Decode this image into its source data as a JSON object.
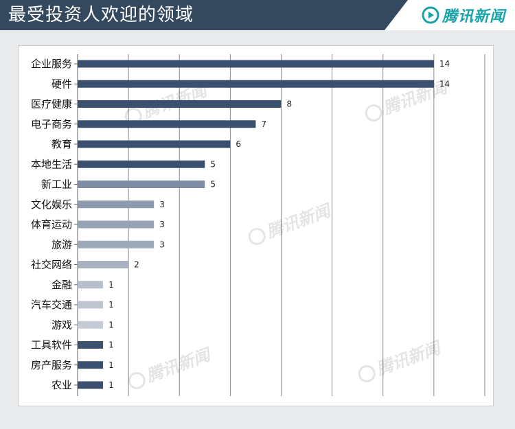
{
  "header": {
    "title": "最受投资人欢迎的领域",
    "brand": "腾讯新闻"
  },
  "colors": {
    "header_bg": "#34495e",
    "brand": "#18a3a8",
    "grid": "#8a8a8a"
  },
  "watermark": "腾讯新闻",
  "chart_data": {
    "type": "bar",
    "orientation": "horizontal",
    "title": "",
    "xlabel": "",
    "ylabel": "",
    "xlim": [
      0,
      16
    ],
    "grid": true,
    "legend": "none",
    "categories": [
      "企业服务",
      "硬件",
      "医疗健康",
      "电子商务",
      "教育",
      "本地生活",
      "新工业",
      "文化娱乐",
      "体育运动",
      "旅游",
      "社交网络",
      "金融",
      "汽车交通",
      "游戏",
      "工具软件",
      "房产服务",
      "农业"
    ],
    "values": [
      14,
      14,
      8,
      7,
      6,
      5,
      5,
      3,
      3,
      3,
      2,
      1,
      1,
      1,
      1,
      1,
      1
    ],
    "bar_colors": [
      "#3a506e",
      "#3a506e",
      "#3a506e",
      "#3a506e",
      "#3a506e",
      "#3a506e",
      "#7f8ea4",
      "#8e9aad",
      "#97a3b4",
      "#9faab9",
      "#a9b2c0",
      "#b7bfcb",
      "#bfc6d0",
      "#c6ccd5",
      "#3a506e",
      "#3a506e",
      "#3a506e"
    ]
  }
}
